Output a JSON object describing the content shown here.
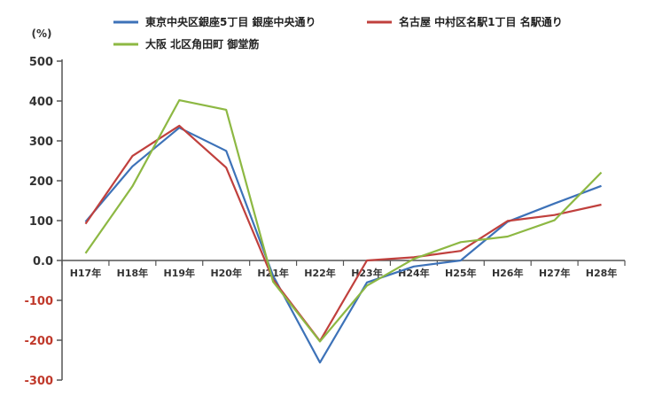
{
  "chart_data": {
    "type": "line",
    "ylabel": "(%)",
    "categories": [
      "H17年",
      "H18年",
      "H19年",
      "H20年",
      "H21年",
      "H22年",
      "H23年",
      "H24年",
      "H25年",
      "H26年",
      "H27年",
      "H28年"
    ],
    "ylim": [
      -300,
      500
    ],
    "yticks": [
      500,
      400,
      300,
      200,
      100,
      0,
      -100,
      -200,
      -300
    ],
    "ytick_labels": [
      "500",
      "400",
      "300",
      "200",
      "100",
      "0.0",
      "-100",
      "-200",
      "-300"
    ],
    "legend_position": "top",
    "grid": false,
    "series": [
      {
        "name": "東京中央区銀座5丁目 銀座中央通り",
        "color": "#3d72b8",
        "values": [
          97,
          236,
          333,
          275,
          -38,
          -256,
          -55,
          -15,
          0,
          97,
          143,
          187
        ]
      },
      {
        "name": "名古屋 中村区名駅1丁目 名駅通り",
        "color": "#c0403d",
        "values": [
          92,
          262,
          338,
          233,
          -48,
          -202,
          0,
          8,
          24,
          99,
          114,
          140
        ]
      },
      {
        "name": "大阪 北区角田町 御堂筋",
        "color": "#8db843",
        "values": [
          18,
          186,
          402,
          378,
          -53,
          -203,
          -63,
          4,
          46,
          60,
          101,
          221
        ]
      }
    ]
  }
}
